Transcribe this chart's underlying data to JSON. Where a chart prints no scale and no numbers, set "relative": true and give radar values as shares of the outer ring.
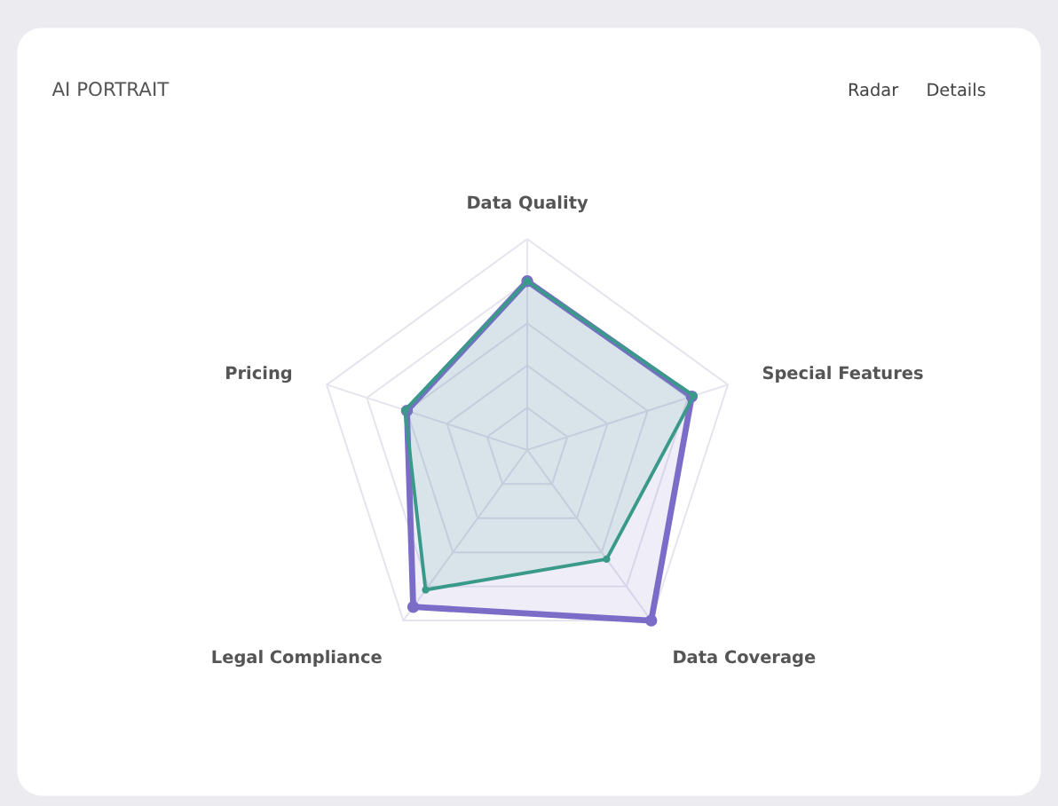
{
  "chart_data": {
    "type": "radar",
    "title": "AI PORTRAIT",
    "relative": true,
    "categories": [
      "Data Quality",
      "Special Features",
      "Data Coverage",
      "Legal Compliance",
      "Pricing"
    ],
    "series": [
      {
        "color": "#7b6cc8",
        "values": [
          0.8,
          0.82,
          1.0,
          0.92,
          0.6
        ]
      },
      {
        "color": "#3a9a8a",
        "values": [
          0.8,
          0.83,
          0.64,
          0.82,
          0.61
        ]
      }
    ],
    "annotations": [
      "Radar",
      "Details"
    ],
    "marker": "circle"
  }
}
